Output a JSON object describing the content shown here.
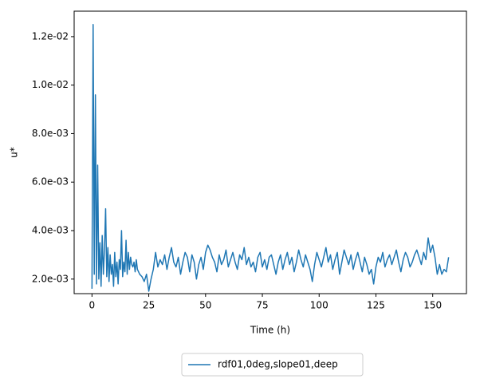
{
  "chart_data": {
    "type": "line",
    "xlabel": "Time (h)",
    "ylabel": "u*",
    "x": [
      0,
      0.5,
      1,
      1.5,
      2,
      2.5,
      3,
      3.5,
      4,
      4.5,
      5,
      5.5,
      6,
      6.5,
      7,
      7.5,
      8,
      8.5,
      9,
      9.5,
      10,
      10.5,
      11,
      11.5,
      12,
      12.5,
      13,
      13.5,
      14,
      14.5,
      15,
      15.5,
      16,
      16.5,
      17,
      17.5,
      18,
      18.5,
      19,
      19.5,
      20,
      21,
      22,
      23,
      24,
      25,
      26,
      27,
      28,
      29,
      30,
      31,
      32,
      33,
      34,
      35,
      36,
      37,
      38,
      39,
      40,
      41,
      42,
      43,
      44,
      45,
      46,
      47,
      48,
      49,
      50,
      51,
      52,
      53,
      54,
      55,
      56,
      57,
      58,
      59,
      60,
      61,
      62,
      63,
      64,
      65,
      66,
      67,
      68,
      69,
      70,
      71,
      72,
      73,
      74,
      75,
      76,
      77,
      78,
      79,
      80,
      81,
      82,
      83,
      84,
      85,
      86,
      87,
      88,
      89,
      90,
      91,
      92,
      93,
      94,
      95,
      96,
      97,
      98,
      99,
      100,
      101,
      102,
      103,
      104,
      105,
      106,
      107,
      108,
      109,
      110,
      111,
      112,
      113,
      114,
      115,
      116,
      117,
      118,
      119,
      120,
      121,
      122,
      123,
      124,
      125,
      126,
      127,
      128,
      129,
      130,
      131,
      132,
      133,
      134,
      135,
      136,
      137,
      138,
      139,
      140,
      141,
      142,
      143,
      144,
      145,
      146,
      147,
      148,
      149,
      150,
      151,
      152,
      153,
      154,
      155,
      156,
      157
    ],
    "series": [
      {
        "name": "rdf01,0deg,slope01,deep",
        "color": "#1f77b4",
        "values": [
          0.0016,
          0.0125,
          0.0022,
          0.0096,
          0.0018,
          0.0067,
          0.002,
          0.0035,
          0.0017,
          0.0038,
          0.0022,
          0.0032,
          0.0049,
          0.0021,
          0.0033,
          0.0019,
          0.003,
          0.0022,
          0.0026,
          0.0017,
          0.0031,
          0.0021,
          0.0027,
          0.0018,
          0.0028,
          0.0024,
          0.004,
          0.0021,
          0.0027,
          0.0023,
          0.0036,
          0.0022,
          0.0031,
          0.0024,
          0.0029,
          0.0026,
          0.0025,
          0.0027,
          0.0023,
          0.0028,
          0.0024,
          0.0022,
          0.0021,
          0.0019,
          0.0022,
          0.0015,
          0.002,
          0.0024,
          0.0031,
          0.0025,
          0.0028,
          0.0026,
          0.003,
          0.0024,
          0.0029,
          0.0033,
          0.0027,
          0.0025,
          0.0029,
          0.0022,
          0.0027,
          0.0031,
          0.0029,
          0.0023,
          0.003,
          0.0027,
          0.002,
          0.0026,
          0.0029,
          0.0024,
          0.0031,
          0.0034,
          0.0032,
          0.0029,
          0.0027,
          0.0023,
          0.003,
          0.0026,
          0.0028,
          0.0032,
          0.0025,
          0.0028,
          0.0031,
          0.0027,
          0.0024,
          0.003,
          0.0028,
          0.0033,
          0.0026,
          0.0029,
          0.0025,
          0.0027,
          0.0023,
          0.0029,
          0.0031,
          0.0025,
          0.0028,
          0.0024,
          0.0029,
          0.003,
          0.0026,
          0.0022,
          0.0027,
          0.003,
          0.0024,
          0.0028,
          0.0031,
          0.0026,
          0.0029,
          0.0023,
          0.0027,
          0.0032,
          0.0028,
          0.0025,
          0.003,
          0.0027,
          0.0024,
          0.0019,
          0.0026,
          0.0031,
          0.0028,
          0.0025,
          0.0029,
          0.0033,
          0.0027,
          0.003,
          0.0024,
          0.0028,
          0.0031,
          0.0022,
          0.0027,
          0.0032,
          0.0029,
          0.0026,
          0.003,
          0.0024,
          0.0028,
          0.0031,
          0.0027,
          0.0023,
          0.0029,
          0.0026,
          0.0022,
          0.0024,
          0.0018,
          0.0025,
          0.0029,
          0.0027,
          0.0031,
          0.0025,
          0.0028,
          0.003,
          0.0026,
          0.0029,
          0.0032,
          0.0027,
          0.0023,
          0.0028,
          0.0031,
          0.0029,
          0.0025,
          0.0027,
          0.003,
          0.0032,
          0.0029,
          0.0026,
          0.0031,
          0.0028,
          0.0037,
          0.0031,
          0.0034,
          0.0029,
          0.0022,
          0.0026,
          0.0022,
          0.0024,
          0.0023,
          0.0029
        ]
      }
    ],
    "xlim": [
      -7.85,
      164.85
    ],
    "xticks": [
      0,
      25,
      50,
      75,
      100,
      125,
      150
    ],
    "ylim": [
      0.0014,
      0.01305
    ],
    "yticks": [
      {
        "value": 0.002,
        "label": "2.0e-03"
      },
      {
        "value": 0.004,
        "label": "4.0e-03"
      },
      {
        "value": 0.006,
        "label": "6.0e-03"
      },
      {
        "value": 0.008,
        "label": "8.0e-03"
      },
      {
        "value": 0.01,
        "label": "1.0e-02"
      },
      {
        "value": 0.012,
        "label": "1.2e-02"
      }
    ],
    "legend": "below"
  }
}
